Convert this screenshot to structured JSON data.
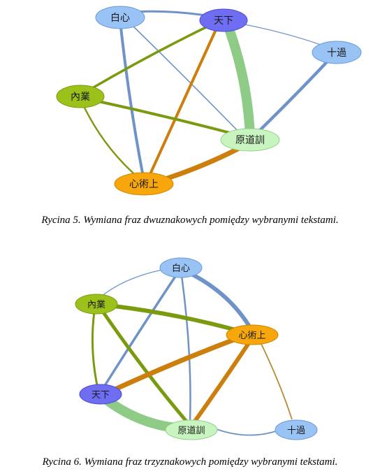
{
  "figures": [
    {
      "caption": "Rycina 5. Wymiana fraz dwuznakowych pomiędzy wybranymi tekstami.",
      "nodes": {
        "baixin": {
          "label": "白心",
          "color": "#99c2f5",
          "stroke": "#6b9bd6"
        },
        "tianxia": {
          "label": "天下",
          "color": "#6f6ef2",
          "stroke": "#4b4ad0"
        },
        "shiguo": {
          "label": "十過",
          "color": "#99c2f5",
          "stroke": "#6b9bd6"
        },
        "neiye": {
          "label": "內業",
          "color": "#9bc11a",
          "stroke": "#7a9c0e"
        },
        "yuandaoxun": {
          "label": "原道訓",
          "color": "#c8f5bf",
          "stroke": "#94d08a"
        },
        "xinshushang": {
          "label": "心術上",
          "color": "#f7a70c",
          "stroke": "#cc8600"
        }
      }
    },
    {
      "caption": "Rycina 6. Wymiana fraz trzyznakowych pomiędzy wybranymi tekstami.",
      "nodes": {
        "baixin": {
          "label": "白心",
          "color": "#99c2f5",
          "stroke": "#6b9bd6"
        },
        "neiye": {
          "label": "內業",
          "color": "#9bc11a",
          "stroke": "#7a9c0e"
        },
        "xinshushang": {
          "label": "心術上",
          "color": "#f7a70c",
          "stroke": "#cc8600"
        },
        "tianxia": {
          "label": "天下",
          "color": "#6f6ef2",
          "stroke": "#4b4ad0"
        },
        "yuandaoxun": {
          "label": "原道訓",
          "color": "#c8f5bf",
          "stroke": "#94d08a"
        },
        "shiguo": {
          "label": "十過",
          "color": "#99c2f5",
          "stroke": "#6b9bd6"
        }
      }
    }
  ],
  "colors": {
    "edge_blue": "#6f93c8",
    "edge_olive": "#7a9a10",
    "edge_orange": "#cc7f0c",
    "edge_green": "#8ecb87"
  }
}
